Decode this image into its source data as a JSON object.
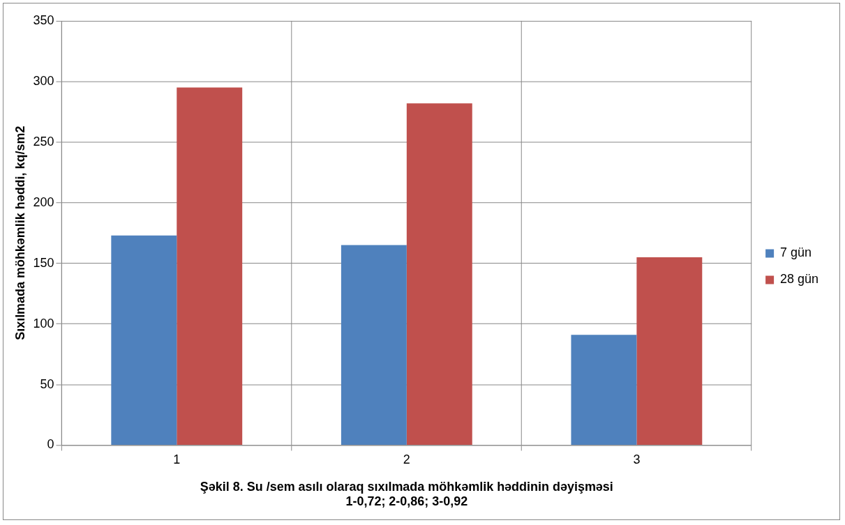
{
  "chart_data": {
    "type": "bar",
    "xlabel": "Şəkil 8. Su /sem asılı olaraq sıxılmada möhkəmlik həddinin dəyişməsi\n1-0,72; 2-0,86; 3-0,92",
    "ylabel": "Sıxılmada möhkəmlik həddi, kq/sm2",
    "categories": [
      "1",
      "2",
      "3"
    ],
    "series": [
      {
        "name": "7 gün",
        "color": "#4f81bd",
        "values": [
          173,
          165,
          91
        ]
      },
      {
        "name": "28 gün",
        "color": "#c0504d",
        "values": [
          295,
          282,
          155
        ]
      }
    ],
    "ylim": [
      0,
      350
    ],
    "yticks": [
      0,
      50,
      100,
      150,
      200,
      250,
      300,
      350
    ],
    "grid": true,
    "legend": "right"
  }
}
